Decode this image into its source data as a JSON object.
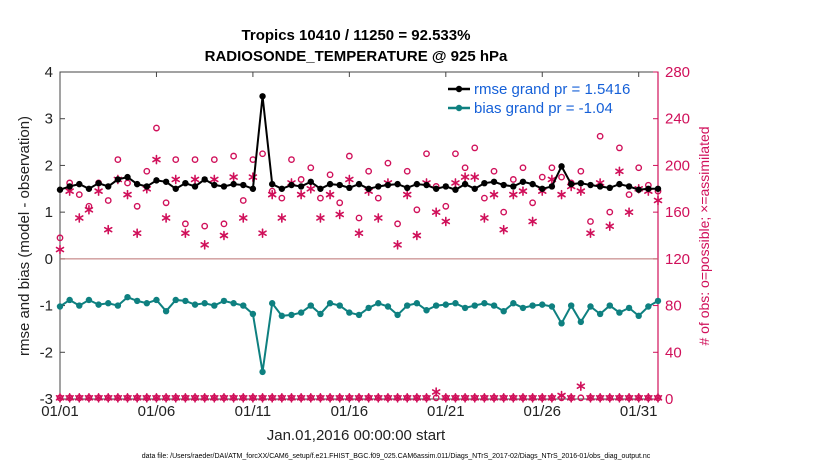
{
  "chart_data": {
    "type": "line",
    "title": "Tropics 10410 / 11250 = 92.533%",
    "subtitle": "RADIOSONDE_TEMPERATURE @ 925 hPa",
    "xlabel": "Jan.01,2016 00:00:00 start",
    "ylabel": "rmse and bias (model - observation)",
    "ylabel_right": "# of obs: o=possible; ×=assimilated",
    "xlim": [
      0,
      31
    ],
    "ylim": [
      -3,
      4
    ],
    "ylim_right": [
      0,
      280
    ],
    "x_ticks": [
      {
        "value": 0,
        "label": "01/01"
      },
      {
        "value": 5,
        "label": "01/06"
      },
      {
        "value": 10,
        "label": "01/11"
      },
      {
        "value": 15,
        "label": "01/16"
      },
      {
        "value": 20,
        "label": "01/21"
      },
      {
        "value": 25,
        "label": "01/26"
      },
      {
        "value": 30,
        "label": "01/31"
      }
    ],
    "y_ticks": [
      "-3",
      "-2",
      "-1",
      "0",
      "1",
      "2",
      "3",
      "4"
    ],
    "y_right_ticks": [
      "0",
      "40",
      "80",
      "120",
      "160",
      "200",
      "240",
      "280"
    ],
    "footer": "data file: /Users/raeder/DAI/ATM_forcXX/CAM6_setup/f.e21.FHIST_BGC.f09_025.CAM6assim.011/Diags_NTrS_2017-02/Diags_NTrS_2016-01/obs_diag_output.nc",
    "colors": {
      "rmse": "#000000",
      "bias": "#0e8080",
      "obs": "#d0105a",
      "legend_text": "#1560d8"
    },
    "legend": [
      {
        "name": "rmse grand pr = 1.5416",
        "series": "rmse"
      },
      {
        "name": "bias grand pr = -1.04",
        "series": "bias"
      }
    ],
    "series": [
      {
        "name": "rmse",
        "axis": "left",
        "x": [
          0,
          0.5,
          1,
          1.5,
          2,
          2.5,
          3,
          3.5,
          4,
          4.5,
          5,
          5.5,
          6,
          6.5,
          7,
          7.5,
          8,
          8.5,
          9,
          9.5,
          10,
          10.5,
          11,
          11.5,
          12,
          12.5,
          13,
          13.5,
          14,
          14.5,
          15,
          15.5,
          16,
          16.5,
          17,
          17.5,
          18,
          18.5,
          19,
          19.5,
          20,
          20.5,
          21,
          21.5,
          22,
          22.5,
          23,
          23.5,
          24,
          24.5,
          25,
          25.5,
          26,
          26.5,
          27,
          27.5,
          28,
          28.5,
          29,
          29.5,
          30,
          30.5,
          31
        ],
        "values": [
          1.48,
          1.55,
          1.6,
          1.5,
          1.62,
          1.55,
          1.7,
          1.75,
          1.6,
          1.55,
          1.68,
          1.65,
          1.5,
          1.62,
          1.55,
          1.7,
          1.58,
          1.55,
          1.6,
          1.58,
          1.5,
          3.48,
          1.6,
          1.5,
          1.58,
          1.55,
          1.65,
          1.5,
          1.6,
          1.58,
          1.52,
          1.6,
          1.5,
          1.55,
          1.58,
          1.6,
          1.52,
          1.6,
          1.58,
          1.5,
          1.55,
          1.48,
          1.6,
          1.5,
          1.62,
          1.65,
          1.58,
          1.55,
          1.65,
          1.6,
          1.5,
          1.55,
          1.98,
          1.6,
          1.62,
          1.58,
          1.55,
          1.52,
          1.6,
          1.55,
          1.48,
          1.5,
          1.5
        ]
      },
      {
        "name": "bias",
        "axis": "left",
        "x": [
          0,
          0.5,
          1,
          1.5,
          2,
          2.5,
          3,
          3.5,
          4,
          4.5,
          5,
          5.5,
          6,
          6.5,
          7,
          7.5,
          8,
          8.5,
          9,
          9.5,
          10,
          10.5,
          11,
          11.5,
          12,
          12.5,
          13,
          13.5,
          14,
          14.5,
          15,
          15.5,
          16,
          16.5,
          17,
          17.5,
          18,
          18.5,
          19,
          19.5,
          20,
          20.5,
          21,
          21.5,
          22,
          22.5,
          23,
          23.5,
          24,
          24.5,
          25,
          25.5,
          26,
          26.5,
          27,
          27.5,
          28,
          28.5,
          29,
          29.5,
          30,
          30.5,
          31
        ],
        "values": [
          -1.02,
          -0.88,
          -1.0,
          -0.88,
          -0.98,
          -0.95,
          -1.0,
          -0.82,
          -0.9,
          -0.95,
          -0.88,
          -1.12,
          -0.88,
          -0.9,
          -0.98,
          -0.95,
          -1.0,
          -0.9,
          -0.95,
          -1.0,
          -1.18,
          -2.42,
          -0.95,
          -1.22,
          -1.2,
          -1.15,
          -1.0,
          -1.18,
          -0.95,
          -1.0,
          -1.15,
          -1.2,
          -1.05,
          -0.95,
          -1.02,
          -1.2,
          -1.0,
          -0.95,
          -1.1,
          -1.0,
          -0.98,
          -0.95,
          -1.05,
          -1.0,
          -0.95,
          -1.0,
          -1.12,
          -0.95,
          -1.05,
          -1.0,
          -0.98,
          -1.02,
          -1.38,
          -1.0,
          -1.35,
          -1.02,
          -1.18,
          -1.0,
          -1.15,
          -1.05,
          -1.22,
          -1.02,
          -0.9
        ]
      },
      {
        "name": "possible",
        "axis": "right",
        "x": [
          0,
          0.5,
          1,
          1.5,
          2,
          2.5,
          3,
          3.5,
          4,
          4.5,
          5,
          5.5,
          6,
          6.5,
          7,
          7.5,
          8,
          8.5,
          9,
          9.5,
          10,
          10.5,
          11,
          11.5,
          12,
          12.5,
          13,
          13.5,
          14,
          14.5,
          15,
          15.5,
          16,
          16.5,
          17,
          17.5,
          18,
          18.5,
          19,
          19.5,
          20,
          20.5,
          21,
          21.5,
          22,
          22.5,
          23,
          23.5,
          24,
          24.5,
          25,
          25.5,
          26,
          26.5,
          27,
          27.5,
          28,
          28.5,
          29,
          29.5,
          30,
          30.5,
          31
        ],
        "values": [
          138,
          185,
          175,
          165,
          185,
          170,
          205,
          185,
          165,
          195,
          232,
          168,
          205,
          150,
          205,
          148,
          205,
          150,
          208,
          170,
          205,
          210,
          178,
          172,
          205,
          188,
          198,
          172,
          192,
          168,
          208,
          155,
          195,
          172,
          202,
          150,
          195,
          162,
          210,
          182,
          165,
          210,
          198,
          215,
          172,
          195,
          160,
          188,
          198,
          168,
          190,
          198,
          190,
          185,
          195,
          152,
          225,
          160,
          215,
          175,
          198,
          183,
          178
        ]
      },
      {
        "name": "assimilated",
        "axis": "right",
        "x": [
          0,
          0.5,
          1,
          1.5,
          2,
          2.5,
          3,
          3.5,
          4,
          4.5,
          5,
          5.5,
          6,
          6.5,
          7,
          7.5,
          8,
          8.5,
          9,
          9.5,
          10,
          10.5,
          11,
          11.5,
          12,
          12.5,
          13,
          13.5,
          14,
          14.5,
          15,
          15.5,
          16,
          16.5,
          17,
          17.5,
          18,
          18.5,
          19,
          19.5,
          20,
          20.5,
          21,
          21.5,
          22,
          22.5,
          23,
          23.5,
          24,
          24.5,
          25,
          25.5,
          26,
          26.5,
          27,
          27.5,
          28,
          28.5,
          29,
          29.5,
          30,
          30.5,
          31
        ],
        "values": [
          128,
          178,
          155,
          162,
          178,
          145,
          188,
          175,
          142,
          180,
          205,
          155,
          188,
          142,
          188,
          132,
          188,
          140,
          190,
          155,
          190,
          142,
          175,
          155,
          185,
          175,
          180,
          155,
          175,
          158,
          188,
          142,
          178,
          155,
          185,
          132,
          175,
          140,
          185,
          160,
          152,
          185,
          190,
          190,
          155,
          175,
          145,
          175,
          178,
          152,
          178,
          188,
          175,
          182,
          178,
          142,
          185,
          148,
          195,
          160,
          180,
          178,
          170
        ]
      },
      {
        "name": "possible_low",
        "axis": "right",
        "x": [
          0,
          0.5,
          1,
          1.5,
          2,
          2.5,
          3,
          3.5,
          4,
          4.5,
          5,
          5.5,
          6,
          6.5,
          7,
          7.5,
          8,
          8.5,
          9,
          9.5,
          10,
          10.5,
          11,
          11.5,
          12,
          12.5,
          13,
          13.5,
          14,
          14.5,
          15,
          15.5,
          16,
          16.5,
          17,
          17.5,
          18,
          18.5,
          19,
          19.5,
          20,
          20.5,
          21,
          21.5,
          22,
          22.5,
          23,
          23.5,
          24,
          24.5,
          25,
          25.5,
          26,
          26.5,
          27,
          27.5,
          28,
          28.5,
          29,
          29.5,
          30,
          30.5,
          31
        ],
        "values": [
          1,
          1,
          1,
          1,
          1,
          1,
          1,
          1,
          1,
          1,
          1,
          1,
          1,
          1,
          1,
          1,
          1,
          1,
          1,
          1,
          1,
          1,
          1,
          1,
          1,
          1,
          1,
          1,
          1,
          1,
          1,
          1,
          1,
          1,
          1,
          1,
          1,
          1,
          1,
          1,
          1,
          1,
          1,
          1,
          1,
          1,
          1,
          1,
          1,
          1,
          1,
          1,
          1,
          1,
          1,
          1,
          1,
          1,
          1,
          1,
          1,
          1,
          1
        ]
      },
      {
        "name": "assimilated_low",
        "axis": "right",
        "x": [
          0,
          0.5,
          1,
          1.5,
          2,
          2.5,
          3,
          3.5,
          4,
          4.5,
          5,
          5.5,
          6,
          6.5,
          7,
          7.5,
          8,
          8.5,
          9,
          9.5,
          10,
          10.5,
          11,
          11.5,
          12,
          12.5,
          13,
          13.5,
          14,
          14.5,
          15,
          15.5,
          16,
          16.5,
          17,
          17.5,
          18,
          18.5,
          19,
          19.5,
          20,
          20.5,
          21,
          21.5,
          22,
          22.5,
          23,
          23.5,
          24,
          24.5,
          25,
          25.5,
          26,
          26.5,
          27,
          27.5,
          28,
          28.5,
          29,
          29.5,
          30,
          30.5,
          31
        ],
        "values": [
          1,
          1,
          1,
          1,
          1,
          1,
          1,
          1,
          1,
          1,
          1,
          1,
          1,
          1,
          1,
          1,
          1,
          1,
          1,
          1,
          1,
          1,
          1,
          1,
          1,
          1,
          1,
          1,
          1,
          1,
          1,
          1,
          1,
          1,
          1,
          1,
          1,
          1,
          1,
          6,
          1,
          1,
          1,
          1,
          1,
          1,
          1,
          1,
          1,
          1,
          1,
          1,
          3,
          1,
          11,
          1,
          1,
          1,
          1,
          1,
          1,
          1,
          1
        ]
      }
    ]
  }
}
